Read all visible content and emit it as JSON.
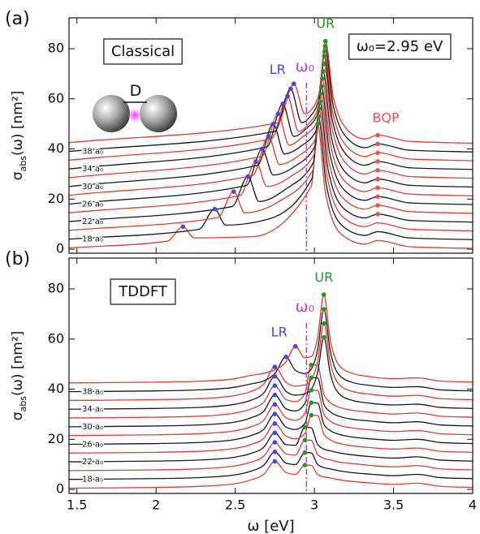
{
  "chart_data": [
    {
      "type": "line",
      "panel_label": "(a)",
      "box_label": "Classical",
      "info_label": "ω₀=2.95 eV",
      "inset_label": "D",
      "y_label": {
        "symbol": "σ",
        "subscript": "abs",
        "rest": "(ω) [nm²]"
      },
      "xlim": [
        1.45,
        4.0
      ],
      "ylim": [
        -1.6,
        92.3
      ],
      "xticks": [
        1.5,
        2,
        2.5,
        3,
        3.5,
        4
      ],
      "xtick_labels": false,
      "yticks": [
        0,
        20,
        40,
        60,
        80
      ],
      "vline": {
        "x": 2.95,
        "label": "ω₀",
        "color": "#d23ad2"
      },
      "series": [
        {
          "color": "#e63b2e",
          "x": [
            1.45,
            2.07,
            2.17,
            2.24,
            2.61,
            2.98,
            3.02,
            3.07,
            3.17,
            3.32,
            3.4,
            3.6,
            4.0
          ],
          "values": [
            0.5,
            3.2,
            9,
            4.5,
            5,
            25,
            50,
            22.5,
            6,
            2,
            3.5,
            1,
            0.3
          ]
        },
        {
          "name": "18 a₀",
          "color": "#1a1a1a",
          "x": [
            1.45,
            2.27,
            2.37,
            2.44,
            2.71,
            2.985,
            3.025,
            3.075,
            3.175,
            3.32,
            3.4,
            3.6,
            4.0
          ],
          "values": [
            4,
            7.9,
            16,
            9.6,
            12,
            28.3,
            53,
            25.8,
            9.4,
            5.5,
            7,
            4.5,
            3.8
          ]
        },
        {
          "color": "#e63b2e",
          "x": [
            1.45,
            2.39,
            2.49,
            2.56,
            2.775,
            2.99,
            3.03,
            3.08,
            3.18,
            3.32,
            3.4,
            3.6,
            4.0
          ],
          "values": [
            7.5,
            12.6,
            23,
            14.5,
            19,
            31.5,
            56,
            29,
            12.9,
            9,
            10.5,
            8,
            7.3
          ]
        },
        {
          "name": "22 a₀",
          "color": "#1a1a1a",
          "x": [
            1.45,
            2.48,
            2.58,
            2.65,
            2.82,
            2.995,
            3.035,
            3.085,
            3.185,
            3.32,
            3.4,
            3.6,
            4.0
          ],
          "values": [
            11,
            17,
            29,
            19,
            24,
            34.8,
            59,
            32.3,
            16.3,
            12.5,
            14,
            11.5,
            10.8
          ]
        },
        {
          "color": "#e63b2e",
          "x": [
            1.45,
            2.53,
            2.63,
            2.7,
            2.85,
            3.0,
            3.04,
            3.09,
            3.19,
            3.32,
            3.4,
            3.6,
            4.0
          ],
          "values": [
            14.5,
            21.4,
            35,
            25,
            29,
            38,
            62,
            35.6,
            19.8,
            16,
            17.5,
            15,
            14.3
          ]
        },
        {
          "name": "26 a₀",
          "color": "#1a1a1a",
          "x": [
            1.45,
            2.57,
            2.67,
            2.74,
            2.875,
            3.005,
            3.045,
            3.095,
            3.195,
            3.32,
            3.4,
            3.6,
            4.0
          ],
          "values": [
            18,
            25.4,
            40,
            29.6,
            33,
            41.3,
            65,
            38.9,
            23.2,
            19.5,
            21,
            18.5,
            17.8
          ]
        },
        {
          "color": "#e63b2e",
          "x": [
            1.45,
            2.61,
            2.71,
            2.78,
            2.895,
            3.01,
            3.05,
            3.1,
            3.2,
            3.32,
            3.4,
            3.6,
            4.0
          ],
          "values": [
            21.5,
            29.4,
            45,
            33.8,
            37,
            44.5,
            68,
            42.2,
            26.6,
            23,
            24.5,
            22,
            21.3
          ]
        },
        {
          "name": "30 a₀",
          "color": "#1a1a1a",
          "x": [
            1.45,
            2.64,
            2.74,
            2.81,
            2.913,
            3.015,
            3.055,
            3.105,
            3.205,
            3.32,
            3.4,
            3.6,
            4.0
          ],
          "values": [
            25,
            33.4,
            50,
            38,
            41,
            47.8,
            71,
            45.4,
            30.1,
            26.5,
            28,
            25.5,
            24.8
          ]
        },
        {
          "color": "#e63b2e",
          "x": [
            1.45,
            2.67,
            2.77,
            2.84,
            2.93,
            3.02,
            3.06,
            3.11,
            3.21,
            3.32,
            3.4,
            3.6,
            4.0
          ],
          "values": [
            28.5,
            37.1,
            54,
            41.5,
            45,
            51,
            74,
            48.7,
            33.5,
            30,
            31.5,
            29,
            28.3
          ]
        },
        {
          "name": "34 a₀",
          "color": "#1a1a1a",
          "x": [
            1.45,
            2.7,
            2.8,
            2.87,
            2.946,
            3.022,
            3.062,
            3.112,
            3.212,
            3.32,
            3.4,
            3.6,
            4.0
          ],
          "values": [
            32,
            40.8,
            58,
            45,
            48,
            54.3,
            77,
            52,
            37,
            33.5,
            35,
            32.5,
            31.8
          ]
        },
        {
          "color": "#e63b2e",
          "x": [
            1.45,
            2.73,
            2.83,
            2.9,
            2.963,
            3.025,
            3.065,
            3.115,
            3.215,
            3.32,
            3.4,
            3.6,
            4.0
          ],
          "values": [
            35.5,
            44.1,
            61,
            47,
            50,
            57,
            79,
            54.8,
            40.3,
            37,
            38.5,
            36,
            35.3
          ]
        },
        {
          "name": "38 a₀",
          "color": "#1a1a1a",
          "x": [
            1.45,
            2.75,
            2.85,
            2.92,
            2.974,
            3.028,
            3.068,
            3.118,
            3.218,
            3.32,
            3.4,
            3.6,
            4.0
          ],
          "values": [
            39,
            47,
            64,
            50.5,
            53,
            59.8,
            81,
            57.6,
            43.6,
            40.5,
            42,
            39.5,
            38.8
          ]
        },
        {
          "color": "#e63b2e",
          "x": [
            1.45,
            2.77,
            2.87,
            2.94,
            2.985,
            3.03,
            3.07,
            3.12,
            3.22,
            3.32,
            3.4,
            3.6,
            4.0
          ],
          "values": [
            42.5,
            50.4,
            66,
            54,
            56,
            62.5,
            83,
            60.5,
            46.9,
            44,
            45.5,
            43,
            42.3
          ]
        }
      ],
      "markers": [
        {
          "name": "LR",
          "color": "#4646e0",
          "x": [
            2.17,
            2.37,
            2.49,
            2.58,
            2.63,
            2.67,
            2.71,
            2.74,
            2.77,
            2.8,
            2.83,
            2.85,
            2.87
          ],
          "values": [
            9,
            16,
            23,
            29,
            35,
            40,
            45,
            50,
            54,
            58,
            61,
            64,
            66
          ]
        },
        {
          "name": "UR",
          "color": "#1e9a1e",
          "x": [
            3.02,
            3.025,
            3.03,
            3.035,
            3.04,
            3.045,
            3.05,
            3.055,
            3.06,
            3.062,
            3.065,
            3.068,
            3.07
          ],
          "values": [
            50,
            53,
            56,
            59,
            62,
            65,
            68,
            71,
            74,
            77,
            79,
            81,
            83
          ]
        },
        {
          "name": "BQP",
          "color": "#f05050",
          "x": [
            3.4,
            3.4,
            3.4,
            3.4,
            3.4,
            3.4,
            3.4,
            3.4,
            3.4,
            3.4
          ],
          "values": [
            14,
            17.5,
            21,
            24.5,
            28,
            31.5,
            35,
            38.5,
            42,
            45.5
          ]
        }
      ]
    },
    {
      "type": "line",
      "panel_label": "(b)",
      "box_label": "TDDFT",
      "y_label": {
        "symbol": "σ",
        "subscript": "abs",
        "rest": "(ω) [nm²]"
      },
      "x_label": "ω [eV]",
      "xlim": [
        1.45,
        4.0
      ],
      "ylim": [
        -1.6,
        92.3
      ],
      "xticks": [
        1.5,
        2,
        2.5,
        3,
        3.5,
        4
      ],
      "yticks": [
        0,
        20,
        40,
        60,
        80
      ],
      "vline": {
        "x": 2.95,
        "label": "ω₀",
        "color": "#d23ad2"
      },
      "x": [
        1.45,
        2.0,
        2.3,
        2.5,
        2.6,
        2.68,
        2.75,
        2.82,
        2.88,
        2.94,
        2.98,
        3.02,
        3.06,
        3.1,
        3.16,
        3.24,
        3.35,
        3.5,
        3.65,
        3.8,
        4.0
      ],
      "series": [
        {
          "color": "#e63b2e",
          "values": [
            0.5,
            0.8,
            1.3,
            2.3,
            3.8,
            6,
            11.2,
            6.8,
            6,
            9.7,
            9.6,
            6,
            5,
            4.6,
            3.8,
            3.2,
            2.6,
            2,
            2.5,
            1.2,
            0.8
          ]
        },
        {
          "name": "18 a₀",
          "color": "#1a1a1a",
          "values": [
            4,
            4.3,
            4.8,
            5.8,
            7.3,
            9.6,
            15,
            10.5,
            9.9,
            14.7,
            14.6,
            10,
            8.7,
            8.2,
            7.4,
            6.7,
            6.1,
            5.5,
            6,
            4.7,
            4.3
          ]
        },
        {
          "color": "#e63b2e",
          "values": [
            7.5,
            7.8,
            8.3,
            9.4,
            10.9,
            13.2,
            18.8,
            14.2,
            13.7,
            19.7,
            19.6,
            14,
            12.4,
            11.8,
            10.9,
            10.3,
            9.6,
            9,
            9.5,
            8.2,
            7.8
          ]
        },
        {
          "name": "22 a₀",
          "color": "#1a1a1a",
          "values": [
            11,
            11.3,
            11.8,
            12.9,
            14.4,
            16.8,
            22.6,
            17.9,
            17.6,
            24.8,
            24.6,
            18,
            16.1,
            15.4,
            14.5,
            13.8,
            13.1,
            12.5,
            13,
            11.7,
            11.3
          ]
        },
        {
          "color": "#e63b2e",
          "values": [
            14.5,
            14.8,
            15.3,
            16.4,
            17.9,
            20.4,
            26.3,
            21.3,
            20.2,
            22.3,
            29.6,
            29.5,
            22,
            19.8,
            18.3,
            17.4,
            16.7,
            16.1,
            16.5,
            15.2,
            14.8
          ]
        },
        {
          "name": "26 a₀",
          "color": "#1a1a1a",
          "values": [
            18,
            18.3,
            18.8,
            19.9,
            21.5,
            24,
            30.1,
            24.9,
            23.9,
            26.3,
            34.6,
            34.5,
            26,
            23.5,
            21.9,
            20.9,
            20.2,
            19.6,
            20,
            18.7,
            18.3
          ]
        },
        {
          "color": "#e63b2e",
          "values": [
            21.5,
            21.8,
            22.3,
            23.4,
            25,
            27.6,
            33.9,
            28.6,
            27.6,
            30.3,
            39.6,
            39.5,
            30,
            27.3,
            25.5,
            24.5,
            23.8,
            23.1,
            23.5,
            22.2,
            21.8
          ]
        },
        {
          "name": "30 a₀",
          "color": "#1a1a1a",
          "values": [
            25,
            25.3,
            25.8,
            26.9,
            28.6,
            31.2,
            37.7,
            32.2,
            31.3,
            34.3,
            44.6,
            44.5,
            34,
            31,
            29.1,
            28,
            27.3,
            26.6,
            27,
            25.7,
            25.3
          ]
        },
        {
          "color": "#e63b2e",
          "values": [
            28.5,
            28.8,
            29.3,
            30.5,
            32.1,
            34.8,
            41.4,
            35.9,
            35,
            38.3,
            49.7,
            49.6,
            38,
            34.7,
            32.7,
            31.6,
            30.8,
            30.1,
            30.5,
            29.2,
            28.8
          ]
        },
        {
          "name": "34 a₀",
          "color": "#1a1a1a",
          "values": [
            32,
            32.3,
            32.8,
            34,
            35.6,
            38.4,
            45.1,
            39.2,
            37.6,
            38.1,
            39.9,
            46.6,
            60.7,
            46.4,
            37.9,
            35.5,
            34.4,
            33.7,
            34,
            32.7,
            32.3
          ]
        },
        {
          "color": "#e63b2e",
          "values": [
            35.5,
            35.8,
            36.3,
            37.5,
            39.1,
            42,
            48.9,
            42.8,
            41.2,
            41.7,
            43.8,
            50.9,
            66.2,
            50.8,
            41.6,
            39.1,
            38,
            37.2,
            37.5,
            36.2,
            35.8
          ]
        },
        {
          "name": "38 a₀",
          "color": "#1a1a1a",
          "values": [
            39,
            39.3,
            39.8,
            40.8,
            42.1,
            43.3,
            46.2,
            52.9,
            47.5,
            46.2,
            48,
            55.6,
            71.9,
            55.3,
            45.4,
            42.7,
            41.5,
            40.7,
            41,
            39.7,
            39.3
          ]
        },
        {
          "color": "#e63b2e",
          "values": [
            42.5,
            42.8,
            43.2,
            44.2,
            45.5,
            46.3,
            47.7,
            50.8,
            57.1,
            52.5,
            53,
            60.5,
            77.7,
            59.8,
            49.2,
            46.3,
            45,
            44.2,
            44.5,
            43.2,
            42.8
          ]
        }
      ],
      "markers": [
        {
          "name": "LR",
          "color": "#4646e0",
          "x": [
            2.75,
            2.75,
            2.75,
            2.75,
            2.75,
            2.75,
            2.75,
            2.75,
            2.75,
            2.75,
            2.75,
            2.82,
            2.88
          ],
          "values": [
            11.2,
            15,
            18.8,
            22.6,
            26.3,
            30.1,
            33.9,
            37.7,
            41.4,
            45.1,
            48.9,
            52.9,
            57.1
          ]
        },
        {
          "name": "UR",
          "color": "#1e9a1e",
          "x": [
            2.94,
            2.94,
            2.94,
            2.94,
            2.98,
            2.98,
            2.98,
            2.98,
            2.98,
            3.06,
            3.06,
            3.06,
            3.06
          ],
          "values": [
            9.7,
            14.7,
            19.7,
            24.8,
            29.6,
            34.6,
            39.6,
            44.6,
            49.7,
            60.7,
            66.2,
            71.9,
            77.7
          ]
        }
      ]
    }
  ]
}
